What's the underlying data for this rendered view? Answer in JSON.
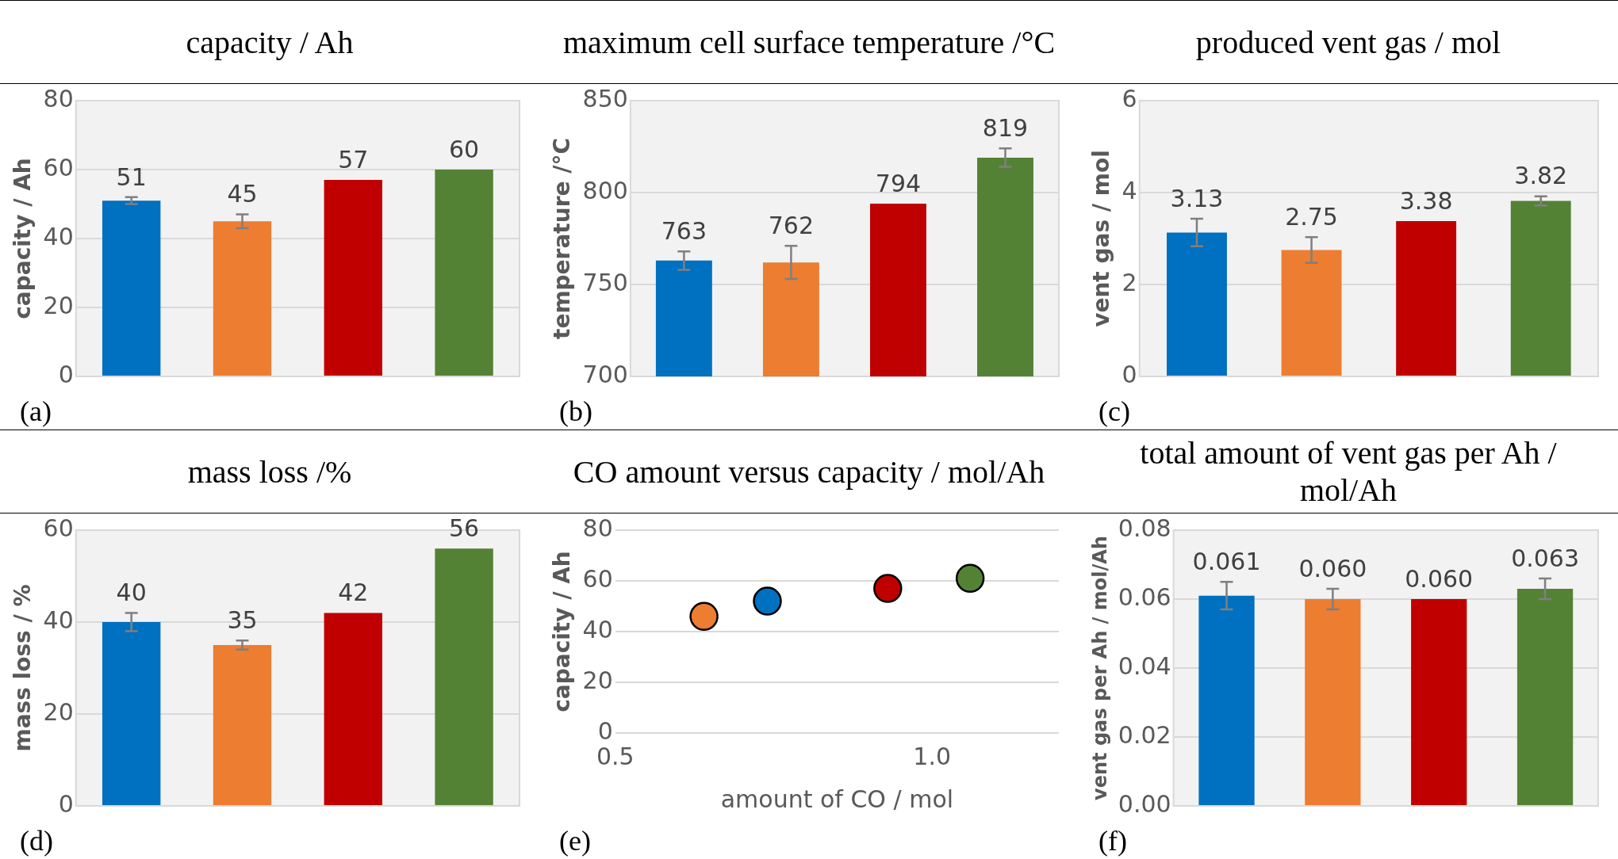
{
  "chart_data": [
    {
      "type": "bar",
      "title": "capacity / Ah",
      "ylabel": "capacity / Ah",
      "categories": [
        null,
        null,
        null,
        null
      ],
      "values": [
        51,
        45,
        57,
        60
      ],
      "colors": [
        "#0070c0",
        "#ed7d31",
        "#c00000",
        "#548235"
      ],
      "errors": [
        1,
        2,
        null,
        null
      ],
      "ylim": [
        0,
        80
      ],
      "yticks": [
        0,
        20,
        40,
        60,
        80
      ],
      "grid": "y",
      "tick_labels": "y",
      "data_labels": true,
      "annotations": [
        "(a)"
      ]
    },
    {
      "type": "bar",
      "title": "maximum cell surface temperature /°C",
      "ylabel": "temperature /°C",
      "categories": [
        null,
        null,
        null,
        null
      ],
      "values": [
        763,
        762,
        794,
        819
      ],
      "colors": [
        "#0070c0",
        "#ed7d31",
        "#c00000",
        "#548235"
      ],
      "errors": [
        5,
        9,
        null,
        5
      ],
      "ylim": [
        700,
        850
      ],
      "yticks": [
        700,
        750,
        800,
        850
      ],
      "grid": "y",
      "tick_labels": "y",
      "data_labels": true,
      "annotations": [
        "(b)"
      ]
    },
    {
      "type": "bar",
      "title": "produced vent gas / mol",
      "ylabel": "vent gas / mol",
      "categories": [
        null,
        null,
        null,
        null
      ],
      "values": [
        3.13,
        2.75,
        3.38,
        3.82
      ],
      "colors": [
        "#0070c0",
        "#ed7d31",
        "#c00000",
        "#548235"
      ],
      "errors": [
        0.3,
        0.28,
        null,
        0.1
      ],
      "ylim": [
        0,
        6
      ],
      "yticks": [
        0,
        2,
        4,
        6
      ],
      "grid": "y",
      "tick_labels": "y",
      "data_labels": true,
      "annotations": [
        "(c)"
      ]
    },
    {
      "type": "bar",
      "title": "mass loss /%",
      "ylabel": "mass loss / %",
      "categories": [
        null,
        null,
        null,
        null
      ],
      "values": [
        40,
        35,
        42,
        56
      ],
      "colors": [
        "#0070c0",
        "#ed7d31",
        "#c00000",
        "#548235"
      ],
      "errors": [
        2,
        1,
        null,
        null
      ],
      "ylim": [
        0,
        60
      ],
      "yticks": [
        0,
        20,
        40,
        60
      ],
      "grid": "y",
      "tick_labels": "y",
      "data_labels": true,
      "annotations": [
        "(d)"
      ]
    },
    {
      "type": "scatter",
      "title": "CO amount versus capacity / mol/Ah",
      "xlabel": "amount of CO / mol",
      "ylabel": "capacity / Ah",
      "x": [
        0.64,
        0.74,
        0.93,
        1.06
      ],
      "values": [
        46,
        52,
        57,
        61
      ],
      "colors": [
        "#ed7d31",
        "#0070c0",
        "#c00000",
        "#548235"
      ],
      "marker": "circle",
      "xlim": [
        0.5,
        1.2
      ],
      "xticks": [
        0.5,
        {
          "value": 1,
          "label": "1.0"
        }
      ],
      "ylim": [
        0,
        80
      ],
      "yticks": [
        0,
        20,
        40,
        60,
        80
      ],
      "grid": "y",
      "annotations": [
        "(e)"
      ]
    },
    {
      "type": "bar",
      "title": "total amount of vent gas per Ah / mol/Ah",
      "ylabel": "vent gas per Ah / mol/Ah",
      "categories": [
        null,
        null,
        null,
        null
      ],
      "values": [
        0.061,
        0.06,
        0.06,
        0.063
      ],
      "value_labels": [
        "0.061",
        "0.060",
        "0.060",
        "0.063"
      ],
      "colors": [
        "#0070c0",
        "#ed7d31",
        "#c00000",
        "#548235"
      ],
      "errors": [
        0.004,
        0.003,
        null,
        0.003
      ],
      "ylim": [
        0,
        0.08
      ],
      "yticks": [
        {
          "value": 0,
          "label": "0.00"
        },
        0.02,
        0.04,
        0.06,
        0.08
      ],
      "grid": "y",
      "tick_labels": "y",
      "annotations": [
        "(f)"
      ]
    }
  ]
}
